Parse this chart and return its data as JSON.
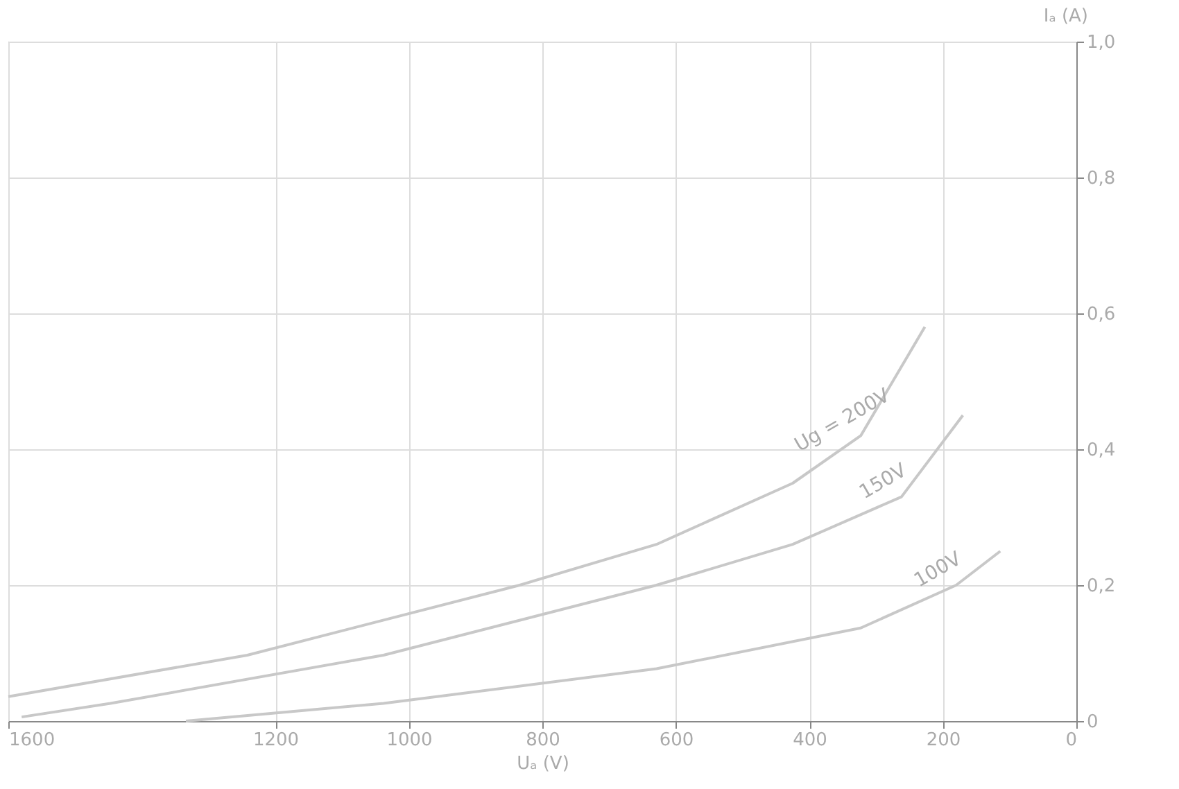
{
  "chart_data": {
    "type": "line",
    "xlabel": "Uₐ (V)",
    "ylabel": "Iₐ (A)",
    "xlim": [
      1600,
      0
    ],
    "ylim": [
      0,
      1.0
    ],
    "xticks": [
      0,
      200,
      400,
      600,
      800,
      1000,
      1200,
      1600
    ],
    "yticks": [
      0,
      {
        "value": 0.2,
        "label": "0,2"
      },
      {
        "value": 0.4,
        "label": "0,4"
      },
      {
        "value": 0.6,
        "label": "0,6"
      },
      {
        "value": 0.8,
        "label": "0,8"
      },
      {
        "value": 1.0,
        "label": "1,0"
      }
    ],
    "grid": true,
    "legend": false,
    "line_style": "solid",
    "marker": "none",
    "series": [
      {
        "name": "Ug = 200V",
        "color": "#c8c8c8",
        "x": [
          1600,
          1242,
          834,
          629,
          425,
          323,
          227
        ],
        "values": [
          0.036,
          0.097,
          0.2,
          0.26,
          0.35,
          0.42,
          0.58
        ]
      },
      {
        "name": "150V",
        "color": "#c8c8c8",
        "x": [
          1580,
          1447,
          1038,
          629,
          425,
          262,
          170
        ],
        "values": [
          0.006,
          0.026,
          0.097,
          0.2,
          0.26,
          0.33,
          0.45
        ]
      },
      {
        "name": "100V",
        "color": "#c8c8c8",
        "x": [
          1334,
          1038,
          629,
          323,
          180,
          114
        ],
        "values": [
          0,
          0.026,
          0.077,
          0.137,
          0.2,
          0.25
        ]
      }
    ]
  }
}
